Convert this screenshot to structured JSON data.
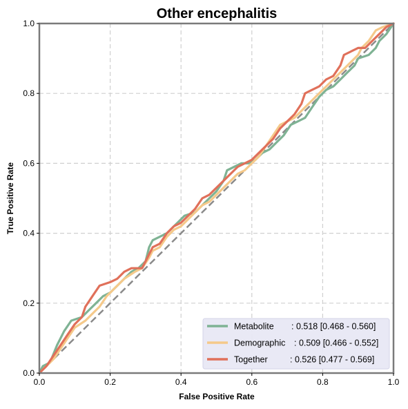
{
  "chart_data": {
    "type": "line",
    "title": "Other encephalitis",
    "xlabel": "False Positive Rate",
    "ylabel": "True Positive Rate",
    "xlim": [
      0,
      1
    ],
    "ylim": [
      0,
      1
    ],
    "x_ticks": [
      "0.0",
      "0.2",
      "0.4",
      "0.6",
      "0.8",
      "1.0"
    ],
    "y_ticks": [
      "0.0",
      "0.2",
      "0.4",
      "0.6",
      "0.8",
      "1.0"
    ],
    "grid": true,
    "legend_position": "bottom-right",
    "diagonal": true,
    "series": [
      {
        "name": "Metabolite",
        "auc_text": ": 0.518 [0.468 - 0.560]",
        "color": "#7fb394",
        "points": [
          [
            0,
            0
          ],
          [
            0.01,
            0.02
          ],
          [
            0.03,
            0.03
          ],
          [
            0.05,
            0.08
          ],
          [
            0.07,
            0.12
          ],
          [
            0.09,
            0.15
          ],
          [
            0.12,
            0.16
          ],
          [
            0.14,
            0.18
          ],
          [
            0.16,
            0.2
          ],
          [
            0.18,
            0.22
          ],
          [
            0.2,
            0.23
          ],
          [
            0.22,
            0.25
          ],
          [
            0.24,
            0.27
          ],
          [
            0.26,
            0.29
          ],
          [
            0.28,
            0.3
          ],
          [
            0.3,
            0.32
          ],
          [
            0.31,
            0.36
          ],
          [
            0.32,
            0.38
          ],
          [
            0.34,
            0.39
          ],
          [
            0.36,
            0.4
          ],
          [
            0.38,
            0.42
          ],
          [
            0.4,
            0.44
          ],
          [
            0.41,
            0.45
          ],
          [
            0.44,
            0.46
          ],
          [
            0.46,
            0.48
          ],
          [
            0.48,
            0.5
          ],
          [
            0.5,
            0.52
          ],
          [
            0.52,
            0.55
          ],
          [
            0.53,
            0.58
          ],
          [
            0.55,
            0.59
          ],
          [
            0.57,
            0.6
          ],
          [
            0.59,
            0.6
          ],
          [
            0.61,
            0.61
          ],
          [
            0.63,
            0.63
          ],
          [
            0.65,
            0.64
          ],
          [
            0.67,
            0.66
          ],
          [
            0.69,
            0.68
          ],
          [
            0.71,
            0.71
          ],
          [
            0.73,
            0.72
          ],
          [
            0.75,
            0.73
          ],
          [
            0.77,
            0.76
          ],
          [
            0.79,
            0.79
          ],
          [
            0.81,
            0.81
          ],
          [
            0.83,
            0.82
          ],
          [
            0.85,
            0.84
          ],
          [
            0.87,
            0.86
          ],
          [
            0.89,
            0.88
          ],
          [
            0.9,
            0.9
          ],
          [
            0.93,
            0.91
          ],
          [
            0.95,
            0.93
          ],
          [
            0.96,
            0.95
          ],
          [
            0.98,
            0.97
          ],
          [
            1.0,
            1.0
          ]
        ]
      },
      {
        "name": "Demographic",
        "auc_text": ": 0.509 [0.466 - 0.552]",
        "color": "#f5c98a",
        "points": [
          [
            0,
            0
          ],
          [
            0.02,
            0.02
          ],
          [
            0.04,
            0.04
          ],
          [
            0.06,
            0.07
          ],
          [
            0.08,
            0.1
          ],
          [
            0.1,
            0.13
          ],
          [
            0.13,
            0.15
          ],
          [
            0.15,
            0.17
          ],
          [
            0.17,
            0.19
          ],
          [
            0.19,
            0.22
          ],
          [
            0.22,
            0.25
          ],
          [
            0.24,
            0.27
          ],
          [
            0.27,
            0.29
          ],
          [
            0.29,
            0.3
          ],
          [
            0.31,
            0.33
          ],
          [
            0.32,
            0.35
          ],
          [
            0.34,
            0.36
          ],
          [
            0.36,
            0.39
          ],
          [
            0.38,
            0.41
          ],
          [
            0.4,
            0.42
          ],
          [
            0.42,
            0.44
          ],
          [
            0.44,
            0.46
          ],
          [
            0.46,
            0.48
          ],
          [
            0.48,
            0.49
          ],
          [
            0.5,
            0.51
          ],
          [
            0.52,
            0.53
          ],
          [
            0.54,
            0.55
          ],
          [
            0.56,
            0.57
          ],
          [
            0.58,
            0.58
          ],
          [
            0.6,
            0.6
          ],
          [
            0.62,
            0.62
          ],
          [
            0.64,
            0.65
          ],
          [
            0.66,
            0.68
          ],
          [
            0.68,
            0.71
          ],
          [
            0.7,
            0.72
          ],
          [
            0.72,
            0.73
          ],
          [
            0.74,
            0.75
          ],
          [
            0.76,
            0.77
          ],
          [
            0.78,
            0.79
          ],
          [
            0.8,
            0.81
          ],
          [
            0.82,
            0.83
          ],
          [
            0.84,
            0.85
          ],
          [
            0.86,
            0.87
          ],
          [
            0.88,
            0.89
          ],
          [
            0.9,
            0.91
          ],
          [
            0.91,
            0.93
          ],
          [
            0.93,
            0.95
          ],
          [
            0.95,
            0.98
          ],
          [
            0.97,
            0.99
          ],
          [
            1.0,
            1.0
          ]
        ]
      },
      {
        "name": "Together",
        "auc_text": ": 0.526 [0.477 - 0.569]",
        "color": "#e0705a",
        "points": [
          [
            0,
            0
          ],
          [
            0.02,
            0.02
          ],
          [
            0.04,
            0.05
          ],
          [
            0.06,
            0.08
          ],
          [
            0.08,
            0.11
          ],
          [
            0.1,
            0.14
          ],
          [
            0.12,
            0.16
          ],
          [
            0.13,
            0.19
          ],
          [
            0.15,
            0.22
          ],
          [
            0.17,
            0.25
          ],
          [
            0.2,
            0.26
          ],
          [
            0.22,
            0.27
          ],
          [
            0.24,
            0.29
          ],
          [
            0.26,
            0.3
          ],
          [
            0.29,
            0.3
          ],
          [
            0.3,
            0.32
          ],
          [
            0.31,
            0.34
          ],
          [
            0.32,
            0.36
          ],
          [
            0.34,
            0.37
          ],
          [
            0.36,
            0.4
          ],
          [
            0.38,
            0.42
          ],
          [
            0.4,
            0.43
          ],
          [
            0.42,
            0.45
          ],
          [
            0.44,
            0.47
          ],
          [
            0.46,
            0.5
          ],
          [
            0.48,
            0.51
          ],
          [
            0.5,
            0.53
          ],
          [
            0.52,
            0.55
          ],
          [
            0.54,
            0.57
          ],
          [
            0.56,
            0.59
          ],
          [
            0.58,
            0.6
          ],
          [
            0.6,
            0.61
          ],
          [
            0.62,
            0.63
          ],
          [
            0.64,
            0.65
          ],
          [
            0.66,
            0.67
          ],
          [
            0.68,
            0.7
          ],
          [
            0.7,
            0.72
          ],
          [
            0.72,
            0.74
          ],
          [
            0.74,
            0.77
          ],
          [
            0.75,
            0.8
          ],
          [
            0.77,
            0.81
          ],
          [
            0.79,
            0.82
          ],
          [
            0.81,
            0.84
          ],
          [
            0.83,
            0.85
          ],
          [
            0.85,
            0.88
          ],
          [
            0.86,
            0.91
          ],
          [
            0.88,
            0.92
          ],
          [
            0.9,
            0.93
          ],
          [
            0.92,
            0.93
          ],
          [
            0.94,
            0.95
          ],
          [
            0.96,
            0.97
          ],
          [
            0.98,
            0.99
          ],
          [
            1.0,
            1.0
          ]
        ]
      }
    ]
  }
}
